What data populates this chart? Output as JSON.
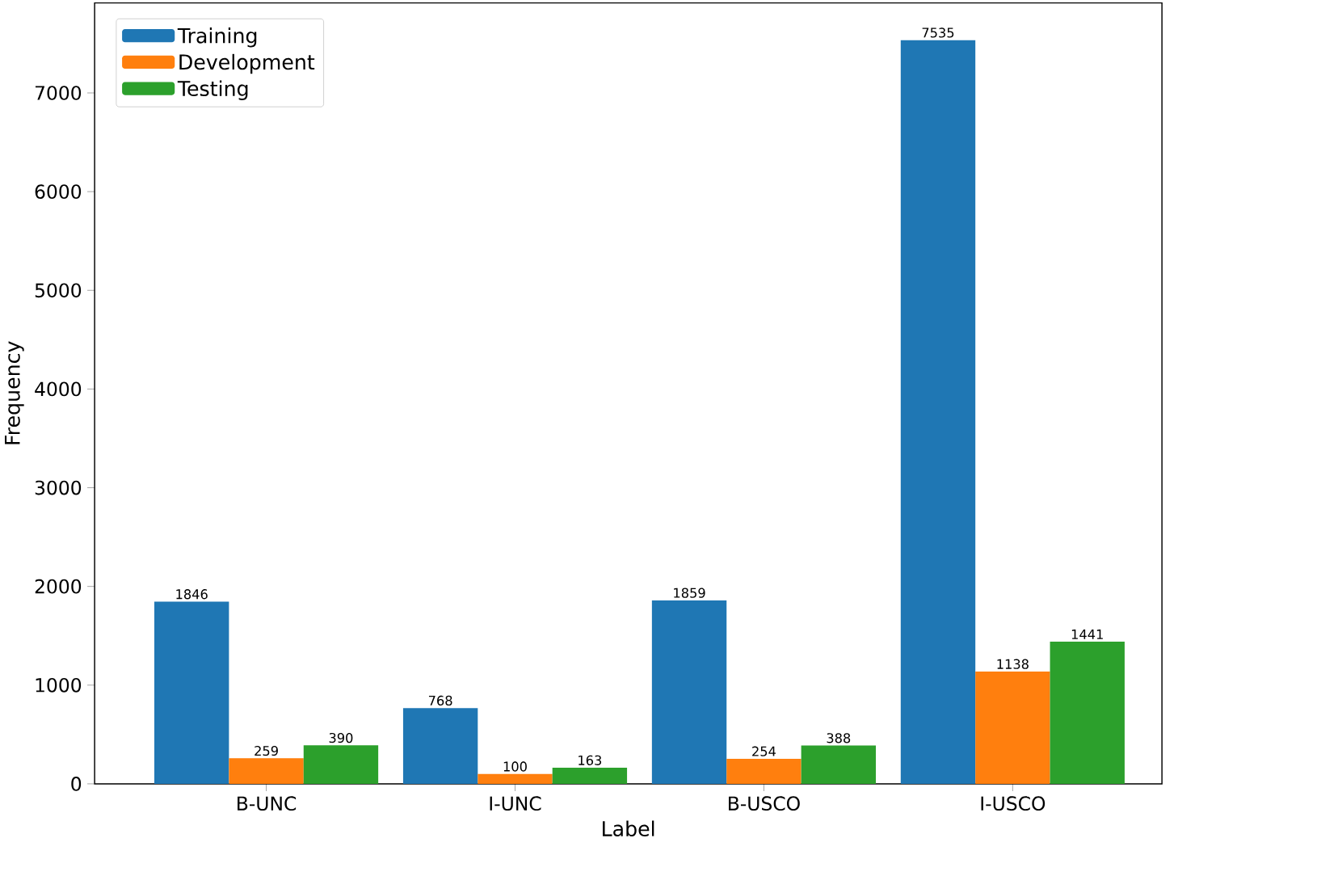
{
  "chart_data": {
    "type": "bar",
    "xlabel": "Label",
    "ylabel": "Frequency",
    "categories": [
      "B-UNC",
      "I-UNC",
      "B-USCO",
      "I-USCO"
    ],
    "series": [
      {
        "name": "Training",
        "color": "#1f77b4",
        "values": [
          1846,
          768,
          1859,
          7535
        ]
      },
      {
        "name": "Development",
        "color": "#ff7f0e",
        "values": [
          259,
          100,
          254,
          1138
        ]
      },
      {
        "name": "Testing",
        "color": "#2ca02c",
        "values": [
          390,
          163,
          388,
          1441
        ]
      }
    ],
    "ylim": [
      0,
      7912
    ],
    "yticks": [
      0,
      1000,
      2000,
      3000,
      4000,
      5000,
      6000,
      7000
    ],
    "legend": "top left",
    "data_labels": true,
    "grid": false
  }
}
